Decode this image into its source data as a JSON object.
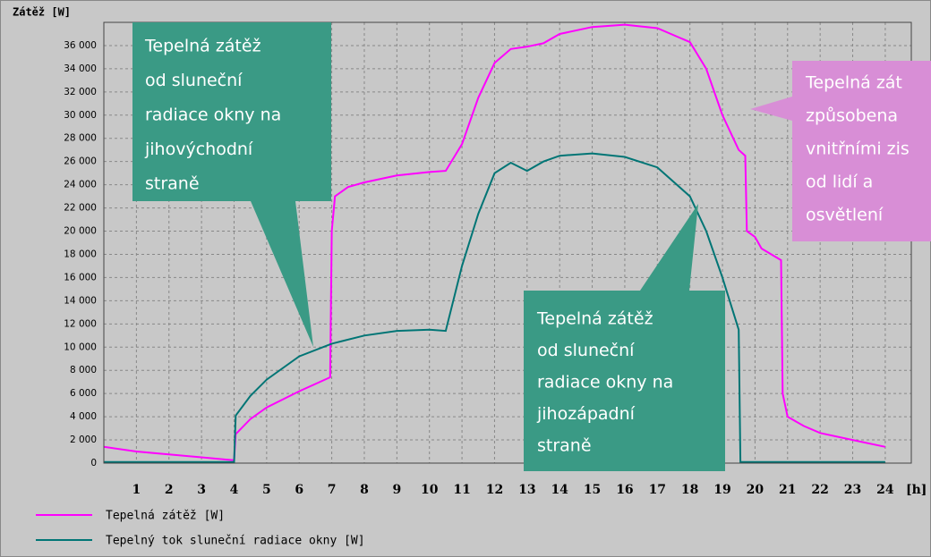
{
  "chart_data": {
    "type": "line",
    "y_label": "Zátěž [W]",
    "x_label": "[h]",
    "xlim": [
      0,
      24.8
    ],
    "ylim": [
      0,
      38000
    ],
    "xticks": [
      1,
      2,
      3,
      4,
      5,
      6,
      7,
      8,
      9,
      10,
      11,
      12,
      13,
      14,
      15,
      16,
      17,
      18,
      19,
      20,
      21,
      22,
      23,
      24
    ],
    "yticks": [
      {
        "value": 0,
        "label": "0"
      },
      {
        "value": 2000,
        "label": "2 000"
      },
      {
        "value": 4000,
        "label": "4 000"
      },
      {
        "value": 6000,
        "label": "6 000"
      },
      {
        "value": 8000,
        "label": "8 000"
      },
      {
        "value": 10000,
        "label": "10 000"
      },
      {
        "value": 12000,
        "label": "12 000"
      },
      {
        "value": 14000,
        "label": "14 000"
      },
      {
        "value": 16000,
        "label": "16 000"
      },
      {
        "value": 18000,
        "label": "18 000"
      },
      {
        "value": 20000,
        "label": "20 000"
      },
      {
        "value": 22000,
        "label": "22 000"
      },
      {
        "value": 24000,
        "label": "24 000"
      },
      {
        "value": 26000,
        "label": "26 000"
      },
      {
        "value": 28000,
        "label": "28 000"
      },
      {
        "value": 30000,
        "label": "30 000"
      },
      {
        "value": 32000,
        "label": "32 000"
      },
      {
        "value": 34000,
        "label": "34 000"
      },
      {
        "value": 36000,
        "label": "36 000"
      }
    ],
    "grid": true,
    "series": [
      {
        "name": "Tepelná zátěž [W]",
        "color": "#ff00ff",
        "x": [
          0,
          1,
          2,
          3,
          4,
          4.05,
          4.5,
          5,
          6,
          6.95,
          7,
          7.1,
          7.5,
          8,
          9,
          10,
          10.5,
          11,
          11.5,
          12,
          12.5,
          13,
          13.5,
          14,
          15,
          16,
          17,
          18,
          18.5,
          19,
          19.5,
          19.7,
          19.75,
          20,
          20.2,
          20.8,
          20.85,
          21,
          21.5,
          22,
          23,
          24
        ],
        "values": [
          1400,
          1000,
          750,
          500,
          250,
          2500,
          3800,
          4800,
          6200,
          7400,
          20000,
          23000,
          23800,
          24200,
          24800,
          25100,
          25200,
          27500,
          31500,
          34500,
          35700,
          35900,
          36200,
          37000,
          37600,
          37800,
          37500,
          36300,
          34000,
          30000,
          27000,
          26500,
          20000,
          19500,
          18500,
          17500,
          6000,
          4000,
          3200,
          2600,
          2000,
          1400
        ]
      },
      {
        "name": "Tepelný tok sluneční radiace okny [W]",
        "color": "#007575",
        "x": [
          0,
          4,
          4.05,
          4.5,
          5,
          6,
          7,
          8,
          9,
          10,
          10.5,
          11,
          11.5,
          12,
          12.5,
          13,
          13.5,
          14,
          15,
          16,
          17,
          18,
          18.5,
          19,
          19.5,
          19.55,
          24
        ],
        "values": [
          100,
          100,
          4100,
          5800,
          7200,
          9200,
          10300,
          11000,
          11400,
          11500,
          11400,
          17000,
          21500,
          25000,
          25900,
          25200,
          26000,
          26500,
          26700,
          26400,
          25500,
          23000,
          20000,
          16000,
          11500,
          100,
          100
        ]
      }
    ],
    "annotations": [
      {
        "lines": [
          "Tepelná zátěž",
          "od sluneční",
          "radiace okny na",
          "jihovýchodní",
          "straně"
        ]
      },
      {
        "lines": [
          "Tepelná zátěž",
          "od sluneční",
          "radiace okny na",
          "jihozápadní",
          "straně"
        ]
      },
      {
        "lines": [
          "Tepelná zát",
          "způsobena",
          "vnitřními zis",
          "od lidí a",
          "osvětlení"
        ]
      }
    ]
  }
}
